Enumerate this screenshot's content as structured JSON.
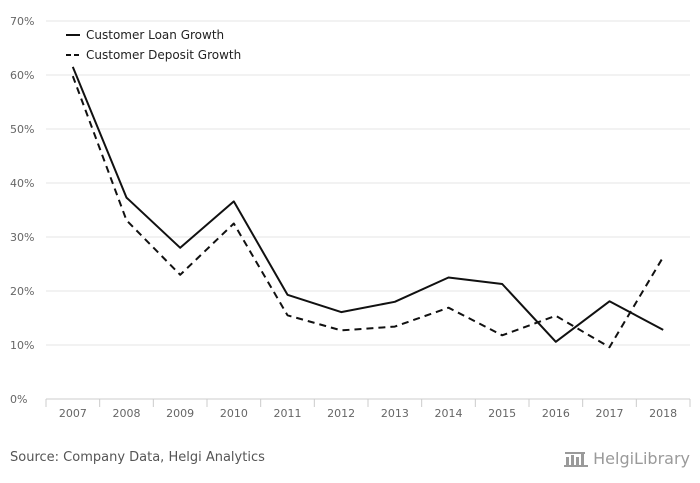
{
  "chart_data": {
    "type": "line",
    "categories": [
      "2007",
      "2008",
      "2009",
      "2010",
      "2011",
      "2012",
      "2013",
      "2014",
      "2015",
      "2016",
      "2017",
      "2018"
    ],
    "series": [
      {
        "name": "Customer Loan Growth",
        "style": "solid",
        "color": "#111111",
        "values": [
          61.5,
          37.3,
          28.0,
          36.6,
          19.3,
          16.1,
          18.0,
          22.5,
          21.3,
          10.6,
          18.1,
          12.8
        ]
      },
      {
        "name": "Customer Deposit Growth",
        "style": "dashed",
        "color": "#111111",
        "values": [
          59.8,
          33.1,
          23.0,
          32.5,
          15.5,
          12.7,
          13.4,
          16.9,
          11.8,
          15.4,
          9.6,
          26.3
        ]
      }
    ],
    "ylim": [
      0,
      70
    ],
    "yticks": [
      "0%",
      "10%",
      "20%",
      "30%",
      "40%",
      "50%",
      "60%",
      "70%"
    ],
    "ytick_values": [
      0,
      10,
      20,
      30,
      40,
      50,
      60,
      70
    ],
    "grid": true,
    "legend_position": "top-left"
  },
  "footer": {
    "source": "Source: Company Data, Helgi Analytics",
    "brand": "HelgiLibrary"
  }
}
